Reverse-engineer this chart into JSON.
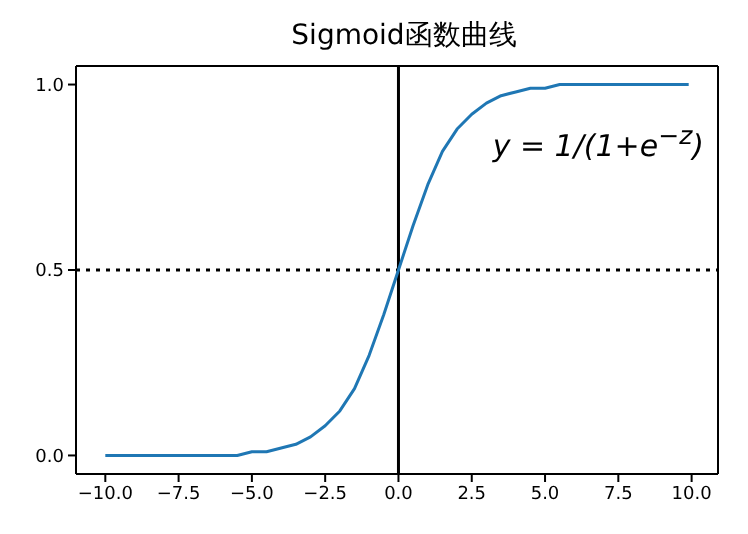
{
  "chart_data": {
    "type": "line",
    "title": "Sigmoid函数曲线",
    "marker": "none",
    "x": [
      -10,
      -9.5,
      -9,
      -8.5,
      -8,
      -7.5,
      -7,
      -6.5,
      -6,
      -5.5,
      -5,
      -4.5,
      -4,
      -3.5,
      -3,
      -2.5,
      -2,
      -1.5,
      -1,
      -0.5,
      0,
      0.5,
      1,
      1.5,
      2,
      2.5,
      3,
      3.5,
      4,
      4.5,
      5,
      5.5,
      6,
      6.5,
      7,
      7.5,
      8,
      8.5,
      9,
      9.5,
      9.9
    ],
    "series": [
      {
        "color": "#1f77b4",
        "values": [
          0.0,
          0.0,
          0.0,
          0.0,
          0.0,
          0.0,
          0.0,
          0.0,
          0.0,
          0.0,
          0.01,
          0.01,
          0.02,
          0.03,
          0.05,
          0.08,
          0.12,
          0.18,
          0.27,
          0.38,
          0.5,
          0.62,
          0.73,
          0.82,
          0.88,
          0.92,
          0.95,
          0.97,
          0.98,
          0.99,
          0.99,
          1.0,
          1.0,
          1.0,
          1.0,
          1.0,
          1.0,
          1.0,
          1.0,
          1.0,
          1.0
        ]
      }
    ],
    "xlim": [
      -11,
      10.9
    ],
    "ylim": [
      -0.05,
      1.05
    ],
    "xticks": [
      {
        "value": -10,
        "label": "−10.0"
      },
      {
        "value": -7.5,
        "label": "−7.5"
      },
      {
        "value": -5,
        "label": "−5.0"
      },
      {
        "value": -2.5,
        "label": "−2.5"
      },
      {
        "value": 0,
        "label": "0.0"
      },
      {
        "value": 2.5,
        "label": "2.5"
      },
      {
        "value": 5,
        "label": "5.0"
      },
      {
        "value": 7.5,
        "label": "7.5"
      },
      {
        "value": 10,
        "label": "10.0"
      }
    ],
    "yticks": [
      {
        "value": 0,
        "label": "0.0"
      },
      {
        "value": 0.5,
        "label": "0.5"
      },
      {
        "value": 1,
        "label": "1.0"
      }
    ],
    "ref_lines": [
      {
        "axis": "y",
        "value": 0.5,
        "color": "#000000",
        "line_style": "dotted"
      },
      {
        "axis": "x",
        "value": 0,
        "color": "#000000",
        "line_style": "solid"
      }
    ],
    "annotations": [
      "y = 1/(1+e$^{−z}$)"
    ]
  }
}
